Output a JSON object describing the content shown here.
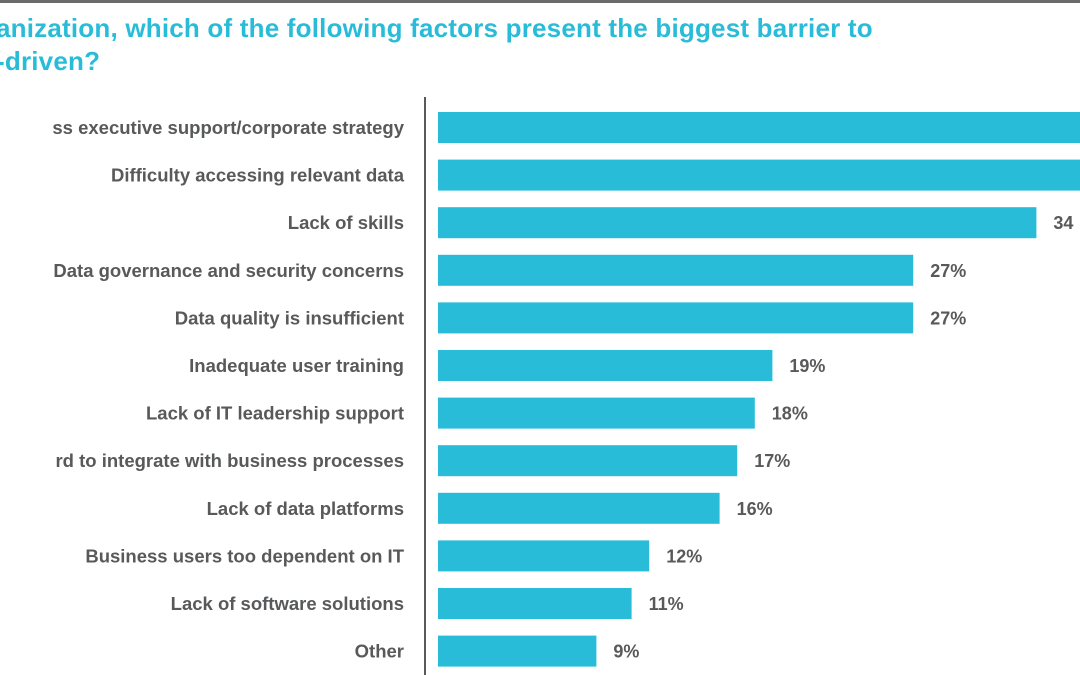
{
  "chart_data": {
    "type": "bar",
    "orientation": "horizontal",
    "title_lines": [
      "anization, which of the following factors present the biggest barrier to",
      "-driven?"
    ],
    "xlabel": "",
    "ylabel": "",
    "unit": "%",
    "xlim": [
      0,
      36.5
    ],
    "grid": false,
    "legend": "none",
    "bar_color": "#29bcd9",
    "axis_color": "#58595b",
    "label_color": "#58595b",
    "title_color": "#29bcd9",
    "categories": [
      "ss executive support/corporate strategy",
      "Difficulty accessing relevant data",
      "Lack of skills",
      "Data governance and security concerns",
      "Data quality is insufficient",
      "Inadequate user training",
      "Lack of IT leadership support",
      "rd to integrate with business processes",
      "Lack of data platforms",
      "Business users too dependent on IT",
      "Lack of software solutions",
      "Other"
    ],
    "values": [
      null,
      null,
      34,
      27,
      27,
      19,
      18,
      17,
      16,
      12,
      11,
      9
    ],
    "value_labels": [
      "",
      "",
      "34",
      "27%",
      "27%",
      "19%",
      "18%",
      "17%",
      "16%",
      "12%",
      "11%",
      "9%"
    ],
    "notes": "First two bars extend beyond the visible frame (values > ~36%); their labels are cropped."
  }
}
